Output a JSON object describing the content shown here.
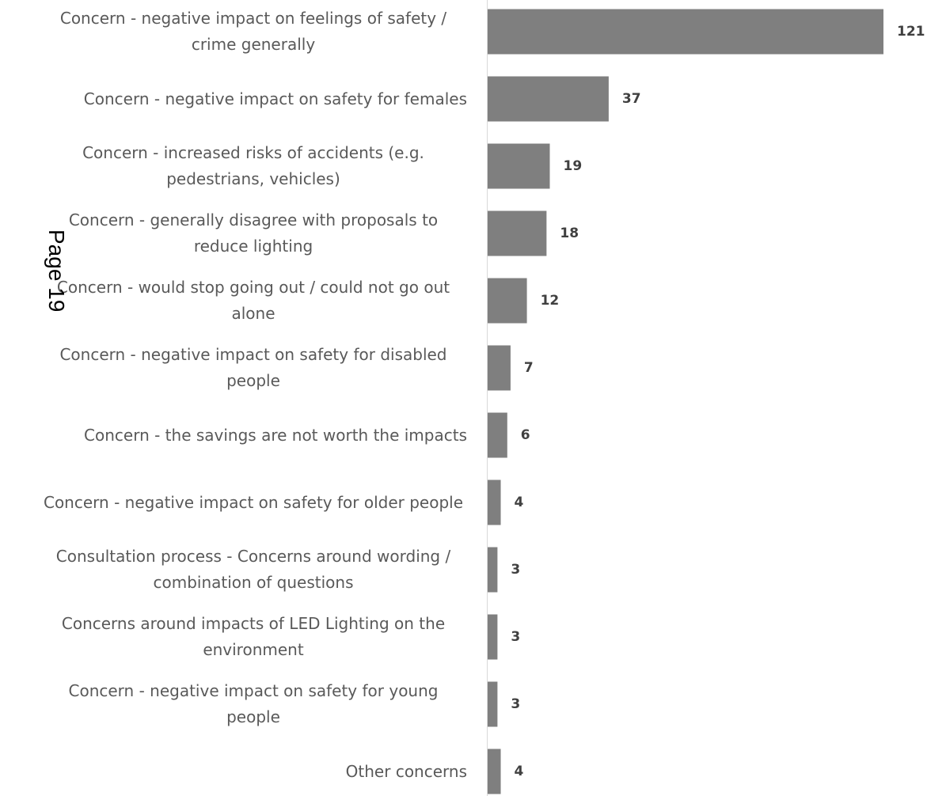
{
  "page_stamp": "Page 19",
  "colors": {
    "bar": "#7f7f7f",
    "axis": "#d9d9d9",
    "category_text": "#595959",
    "value_text": "#404040"
  },
  "chart_data": {
    "type": "bar",
    "orientation": "horizontal",
    "title": "",
    "xlabel": "",
    "ylabel": "",
    "grid": false,
    "legend": "none",
    "xlim": [
      0,
      121
    ],
    "categories": [
      "Concern - negative impact on feelings of safety / crime generally",
      "Concern - negative impact on safety for females",
      "Concern - increased risks of accidents (e.g. pedestrians, vehicles)",
      "Concern - generally disagree with proposals to reduce lighting",
      "Concern - would stop going out / could not go out alone",
      "Concern - negative impact on safety for disabled people",
      "Concern - the savings are not worth the impacts",
      "Concern - negative impact on safety for older people",
      "Consultation process - Concerns around wording / combination of questions",
      "Concerns around impacts of LED Lighting on the environment",
      "Concern - negative impact on safety for young people",
      "Other concerns"
    ],
    "values": [
      121,
      37,
      19,
      18,
      12,
      7,
      6,
      4,
      3,
      3,
      3,
      4
    ]
  }
}
